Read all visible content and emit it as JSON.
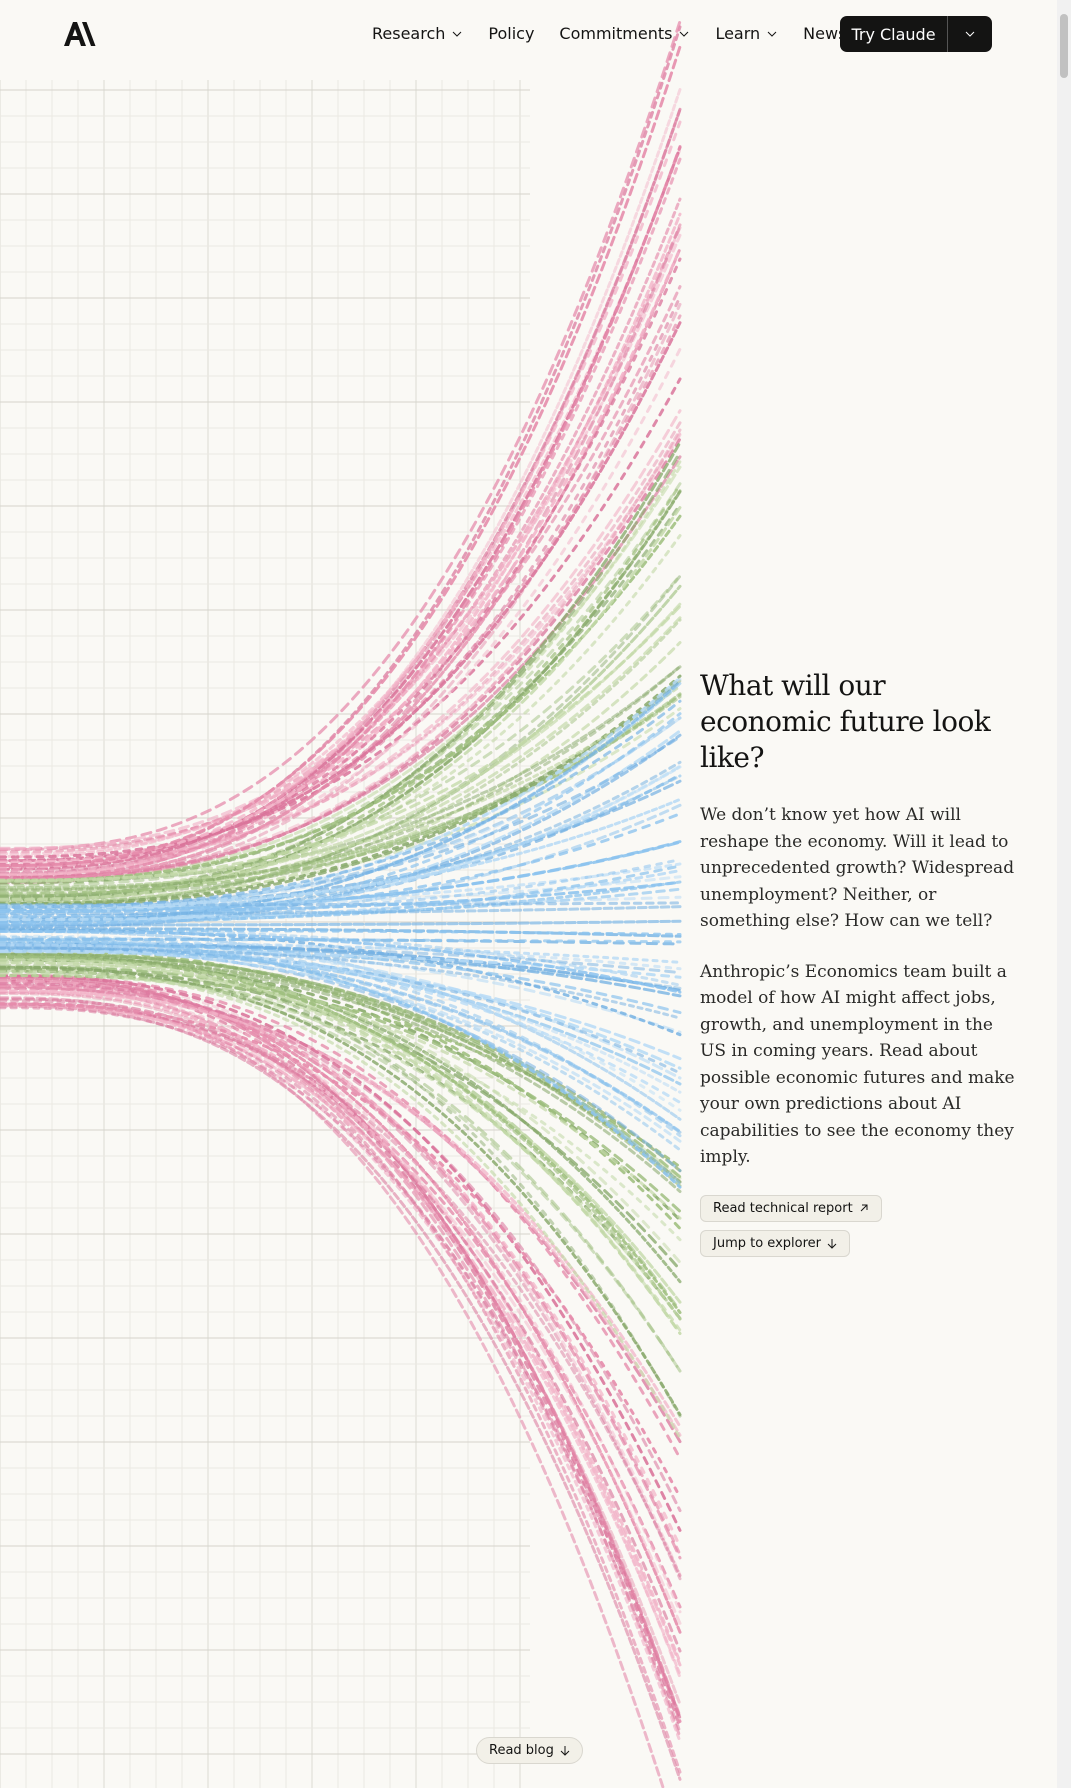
{
  "nav": {
    "items": [
      "Research",
      "Policy",
      "Commitments",
      "Learn",
      "News"
    ],
    "cta": "Try Claude"
  },
  "hero": {
    "title": "What will our economic future look like?",
    "paragraphs": [
      "We don’t know yet how AI will reshape the economy. Will it lead to unprecedented growth? Widespread unemployment? Neither, or something else? How can we tell?",
      "Anthropic’s Economics team built a model of how AI might affect jobs, growth, and unemployment in the US in coming years. Read about possible economic futures and make your own predictions about AI capabilities to see the economy they imply."
    ],
    "links": [
      "Read technical report",
      "Jump to explorer"
    ]
  },
  "footer_link": "Read blog"
}
